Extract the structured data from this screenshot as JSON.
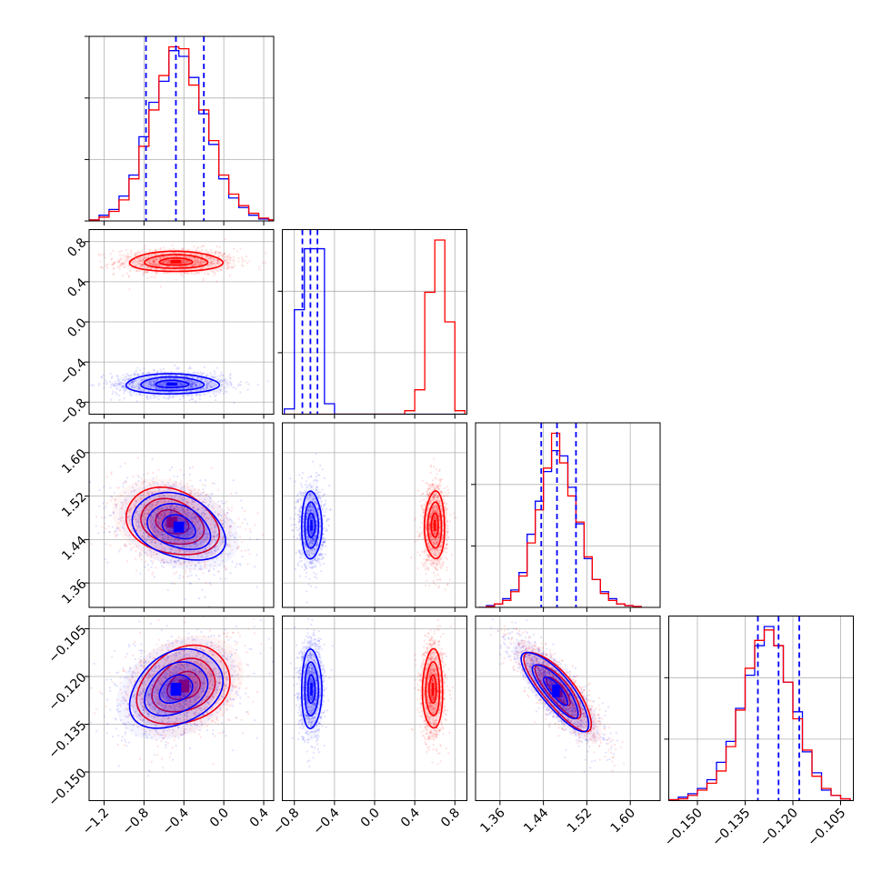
{
  "chart_data": {
    "type": "corner",
    "title": "",
    "series": [
      {
        "name": "",
        "color": "#0000ff"
      },
      {
        "name": "",
        "color": "#ff0000"
      }
    ],
    "params": [
      {
        "lim": [
          -1.35,
          0.5
        ],
        "ticks": [
          -1.2,
          -0.8,
          -0.4,
          0.0,
          0.4
        ],
        "tick_labels": [
          "−1.2",
          "−0.8",
          "−0.4",
          "0.0",
          "0.4"
        ],
        "quantiles": [
          -0.78,
          -0.48,
          -0.2
        ]
      },
      {
        "lim": [
          -0.92,
          0.92
        ],
        "ticks": [
          -0.8,
          -0.4,
          0.0,
          0.4,
          0.8
        ],
        "tick_labels": [
          "−0.8",
          "−0.4",
          "0.0",
          "0.4",
          "0.8"
        ],
        "quantiles": [
          -0.72,
          -0.64,
          -0.57
        ]
      },
      {
        "lim": [
          1.315,
          1.655
        ],
        "ticks": [
          1.36,
          1.44,
          1.52,
          1.6
        ],
        "tick_labels": [
          "1.36",
          "1.44",
          "1.52",
          "1.60"
        ],
        "quantiles": [
          1.436,
          1.465,
          1.5
        ]
      },
      {
        "lim": [
          -0.159,
          -0.101
        ],
        "ticks": [
          -0.15,
          -0.135,
          -0.12,
          -0.105
        ],
        "tick_labels": [
          "−0.150",
          "−0.135",
          "−0.120",
          "−0.105"
        ],
        "quantiles": [
          -0.131,
          -0.1245,
          -0.118
        ]
      }
    ],
    "histograms": [
      {
        "edges": [
          -1.35,
          -1.25,
          -1.15,
          -1.05,
          -0.95,
          -0.85,
          -0.75,
          -0.65,
          -0.55,
          -0.45,
          -0.35,
          -0.25,
          -0.15,
          -0.05,
          0.05,
          0.15,
          0.25,
          0.35,
          0.45,
          0.5
        ],
        "blue": [
          0.5,
          3,
          6,
          13,
          24,
          44,
          62,
          73,
          89,
          86,
          75,
          56,
          40,
          22,
          12,
          7,
          3,
          1,
          0.5
        ],
        "red": [
          0.5,
          2,
          5,
          11,
          22,
          39,
          58,
          76,
          91,
          90,
          71,
          58,
          42,
          24,
          14,
          8,
          4,
          1.5,
          0.5
        ]
      },
      {
        "edges": [
          -0.9,
          -0.8,
          -0.7,
          -0.6,
          -0.5,
          -0.4,
          0.3,
          0.4,
          0.5,
          0.6,
          0.7,
          0.8,
          0.9
        ],
        "blue": [
          3,
          60,
          95,
          95,
          6,
          0,
          0,
          0,
          0,
          0,
          0,
          0
        ],
        "red": [
          0,
          0,
          0,
          0,
          0,
          0,
          2,
          14,
          70,
          100,
          53,
          2
        ]
      },
      {
        "edges": [
          1.32,
          1.335,
          1.35,
          1.365,
          1.38,
          1.395,
          1.41,
          1.425,
          1.44,
          1.455,
          1.47,
          1.485,
          1.5,
          1.515,
          1.53,
          1.545,
          1.56,
          1.575,
          1.59,
          1.605,
          1.62
        ],
        "blue": [
          0,
          1,
          2,
          5,
          10,
          20,
          42,
          61,
          78,
          90,
          87,
          69,
          48,
          28,
          16,
          9,
          5,
          2,
          1,
          0.5
        ],
        "red": [
          0,
          0.5,
          2,
          4,
          9,
          18,
          37,
          56,
          80,
          100,
          83,
          64,
          49,
          29,
          16,
          8,
          4,
          2,
          1,
          0.5
        ]
      },
      {
        "edges": [
          -0.159,
          -0.156,
          -0.153,
          -0.15,
          -0.147,
          -0.144,
          -0.141,
          -0.138,
          -0.135,
          -0.132,
          -0.129,
          -0.126,
          -0.123,
          -0.12,
          -0.117,
          -0.114,
          -0.111,
          -0.108,
          -0.105,
          -0.102
        ],
        "blue": [
          0.5,
          2,
          4,
          7,
          12,
          22,
          34,
          53,
          72,
          89,
          100,
          89,
          68,
          51,
          28,
          16,
          6,
          3,
          1
        ],
        "red": [
          0.5,
          1,
          3,
          6,
          10,
          17,
          31,
          52,
          76,
          92,
          98,
          89,
          68,
          47,
          29,
          14,
          7,
          3,
          1
        ]
      }
    ],
    "pairs": [
      {
        "row": 1,
        "col": 0,
        "blue": {
          "center": [
            -0.52,
            -0.62
          ],
          "sd": [
            0.3,
            0.065
          ],
          "rho": 0,
          "angle": 0
        },
        "red": {
          "center": [
            -0.48,
            0.6
          ],
          "sd": [
            0.3,
            0.065
          ],
          "rho": 0,
          "angle": 0
        }
      },
      {
        "row": 2,
        "col": 0,
        "blue": {
          "center": [
            -0.45,
            1.463
          ],
          "sd": [
            0.3,
            0.04
          ],
          "rho": -0.3
        },
        "red": {
          "center": [
            -0.52,
            1.472
          ],
          "sd": [
            0.3,
            0.04
          ],
          "rho": -0.25
        }
      },
      {
        "row": 2,
        "col": 1,
        "blue": {
          "center": [
            -0.63,
            1.466
          ],
          "sd": [
            0.065,
            0.04
          ],
          "rho": 0
        },
        "red": {
          "center": [
            0.6,
            1.466
          ],
          "sd": [
            0.065,
            0.04
          ],
          "rho": 0
        }
      },
      {
        "row": 3,
        "col": 0,
        "blue": {
          "center": [
            -0.48,
            -0.124
          ],
          "sd": [
            0.3,
            0.008
          ],
          "rho": 0.3
        },
        "red": {
          "center": [
            -0.4,
            -0.123
          ],
          "sd": [
            0.3,
            0.008
          ],
          "rho": 0.25
        }
      },
      {
        "row": 3,
        "col": 1,
        "blue": {
          "center": [
            -0.63,
            -0.124
          ],
          "sd": [
            0.065,
            0.008
          ],
          "rho": 0
        },
        "red": {
          "center": [
            0.58,
            -0.124
          ],
          "sd": [
            0.065,
            0.008
          ],
          "rho": 0
        }
      },
      {
        "row": 3,
        "col": 2,
        "blue": {
          "center": [
            1.463,
            -0.1245
          ],
          "sd": [
            0.04,
            0.008
          ],
          "rho": -0.82
        },
        "red": {
          "center": [
            1.468,
            -0.1245
          ],
          "sd": [
            0.04,
            0.008
          ],
          "rho": -0.82
        }
      }
    ]
  }
}
